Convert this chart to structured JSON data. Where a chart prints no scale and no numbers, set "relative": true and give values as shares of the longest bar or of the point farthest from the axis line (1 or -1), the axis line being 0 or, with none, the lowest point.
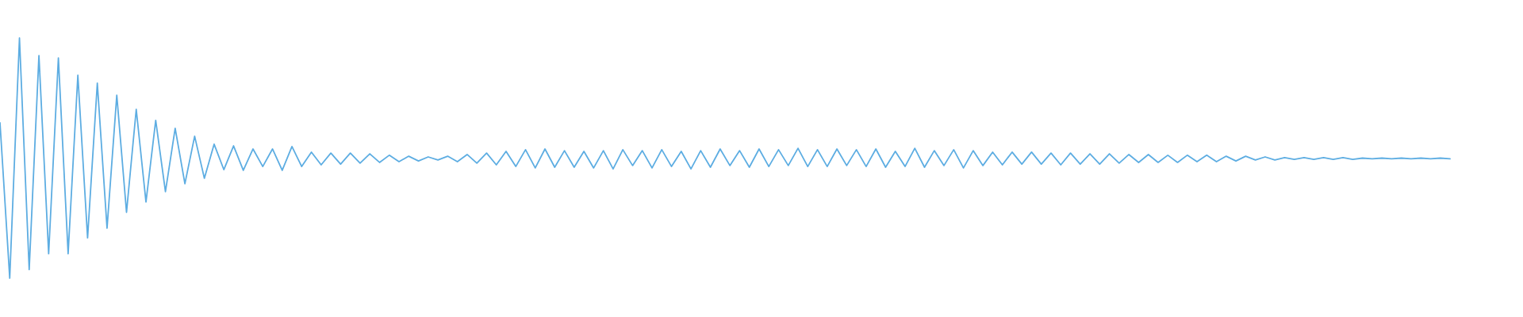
{
  "chart_data": {
    "type": "line",
    "relative": true,
    "color": "#5dade2",
    "categories": [
      null,
      null,
      null,
      null,
      null,
      null,
      null,
      null,
      null,
      null,
      null,
      null,
      null,
      null,
      null,
      null,
      null,
      null,
      null,
      null,
      null,
      null,
      null,
      null,
      null,
      null,
      null,
      null,
      null,
      null,
      null,
      null,
      null,
      null,
      null,
      null,
      null,
      null,
      null,
      null,
      null,
      null,
      null,
      null,
      null,
      null,
      null,
      null,
      null,
      null,
      null,
      null,
      null,
      null,
      null,
      null,
      null,
      null,
      null,
      null,
      null,
      null,
      null,
      null,
      null,
      null,
      null,
      null,
      null,
      null,
      null,
      null,
      null,
      null,
      null,
      null,
      null,
      null,
      null,
      null,
      null,
      null,
      null,
      null,
      null,
      null,
      null,
      null,
      null,
      null,
      null,
      null,
      null,
      null,
      null,
      null,
      null,
      null,
      null,
      null,
      null,
      null,
      null,
      null,
      null,
      null,
      null,
      null,
      null,
      null,
      null,
      null,
      null,
      null,
      null,
      null,
      null,
      null,
      null,
      null,
      null,
      null,
      null,
      null,
      null,
      null,
      null,
      null,
      null,
      null,
      null,
      null,
      null,
      null,
      null,
      null,
      null,
      null,
      null,
      null,
      null,
      null,
      null,
      null,
      null,
      null,
      null,
      null,
      null,
      null
    ],
    "values": [
      0.647,
      0.0,
      1.0,
      0.036,
      0.927,
      0.102,
      0.917,
      0.102,
      0.845,
      0.168,
      0.812,
      0.208,
      0.762,
      0.274,
      0.703,
      0.317,
      0.657,
      0.36,
      0.624,
      0.393,
      0.591,
      0.416,
      0.558,
      0.452,
      0.551,
      0.449,
      0.538,
      0.465,
      0.538,
      0.449,
      0.548,
      0.465,
      0.525,
      0.472,
      0.521,
      0.475,
      0.521,
      0.479,
      0.518,
      0.482,
      0.512,
      0.485,
      0.508,
      0.488,
      0.505,
      0.492,
      0.508,
      0.485,
      0.515,
      0.479,
      0.521,
      0.472,
      0.528,
      0.465,
      0.535,
      0.459,
      0.538,
      0.462,
      0.531,
      0.462,
      0.528,
      0.459,
      0.531,
      0.455,
      0.535,
      0.469,
      0.531,
      0.459,
      0.535,
      0.465,
      0.528,
      0.455,
      0.531,
      0.462,
      0.538,
      0.469,
      0.531,
      0.462,
      0.538,
      0.465,
      0.535,
      0.469,
      0.541,
      0.465,
      0.535,
      0.465,
      0.538,
      0.469,
      0.535,
      0.465,
      0.538,
      0.462,
      0.528,
      0.465,
      0.541,
      0.462,
      0.531,
      0.469,
      0.535,
      0.459,
      0.531,
      0.469,
      0.525,
      0.472,
      0.525,
      0.475,
      0.525,
      0.475,
      0.521,
      0.472,
      0.521,
      0.475,
      0.518,
      0.475,
      0.518,
      0.479,
      0.515,
      0.482,
      0.515,
      0.482,
      0.512,
      0.482,
      0.512,
      0.485,
      0.512,
      0.485,
      0.508,
      0.488,
      0.508,
      0.492,
      0.505,
      0.492,
      0.502,
      0.495,
      0.502,
      0.495,
      0.502,
      0.495,
      0.502,
      0.495,
      0.5,
      0.497,
      0.5,
      0.497,
      0.5,
      0.497,
      0.5,
      0.497,
      0.5,
      0.497
    ]
  }
}
